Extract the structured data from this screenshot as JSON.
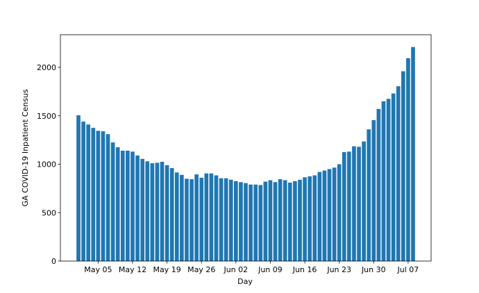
{
  "chart_data": {
    "type": "bar",
    "x_label": "Day",
    "y_label": "GA COVID-19 Inpatient Census",
    "color": "#1f77b4",
    "categories": [
      null,
      null,
      null,
      null,
      "May 05",
      null,
      null,
      null,
      null,
      null,
      null,
      "May 12",
      null,
      null,
      null,
      null,
      null,
      null,
      "May 19",
      null,
      null,
      null,
      null,
      null,
      null,
      "May 26",
      null,
      null,
      null,
      null,
      null,
      null,
      "Jun 02",
      null,
      null,
      null,
      null,
      null,
      null,
      "Jun 09",
      null,
      null,
      null,
      null,
      null,
      null,
      "Jun 16",
      null,
      null,
      null,
      null,
      null,
      null,
      "Jun 23",
      null,
      null,
      null,
      null,
      null,
      null,
      "Jun 30",
      null,
      null,
      null,
      null,
      null,
      null,
      "Jul 07",
      null
    ],
    "values": [
      1505,
      1440,
      1410,
      1375,
      1345,
      1340,
      1310,
      1225,
      1175,
      1140,
      1140,
      1130,
      1090,
      1055,
      1030,
      1010,
      1015,
      1025,
      990,
      960,
      915,
      890,
      850,
      845,
      895,
      860,
      905,
      905,
      885,
      855,
      855,
      840,
      825,
      815,
      805,
      790,
      790,
      785,
      820,
      835,
      815,
      845,
      835,
      810,
      825,
      840,
      865,
      875,
      885,
      920,
      935,
      950,
      965,
      1000,
      1125,
      1130,
      1185,
      1180,
      1235,
      1360,
      1455,
      1570,
      1650,
      1675,
      1730,
      1805,
      1960,
      2095,
      2210
    ],
    "ylim": [
      0,
      2337
    ],
    "yticks": [
      0,
      500,
      1000,
      1500,
      2000
    ]
  }
}
